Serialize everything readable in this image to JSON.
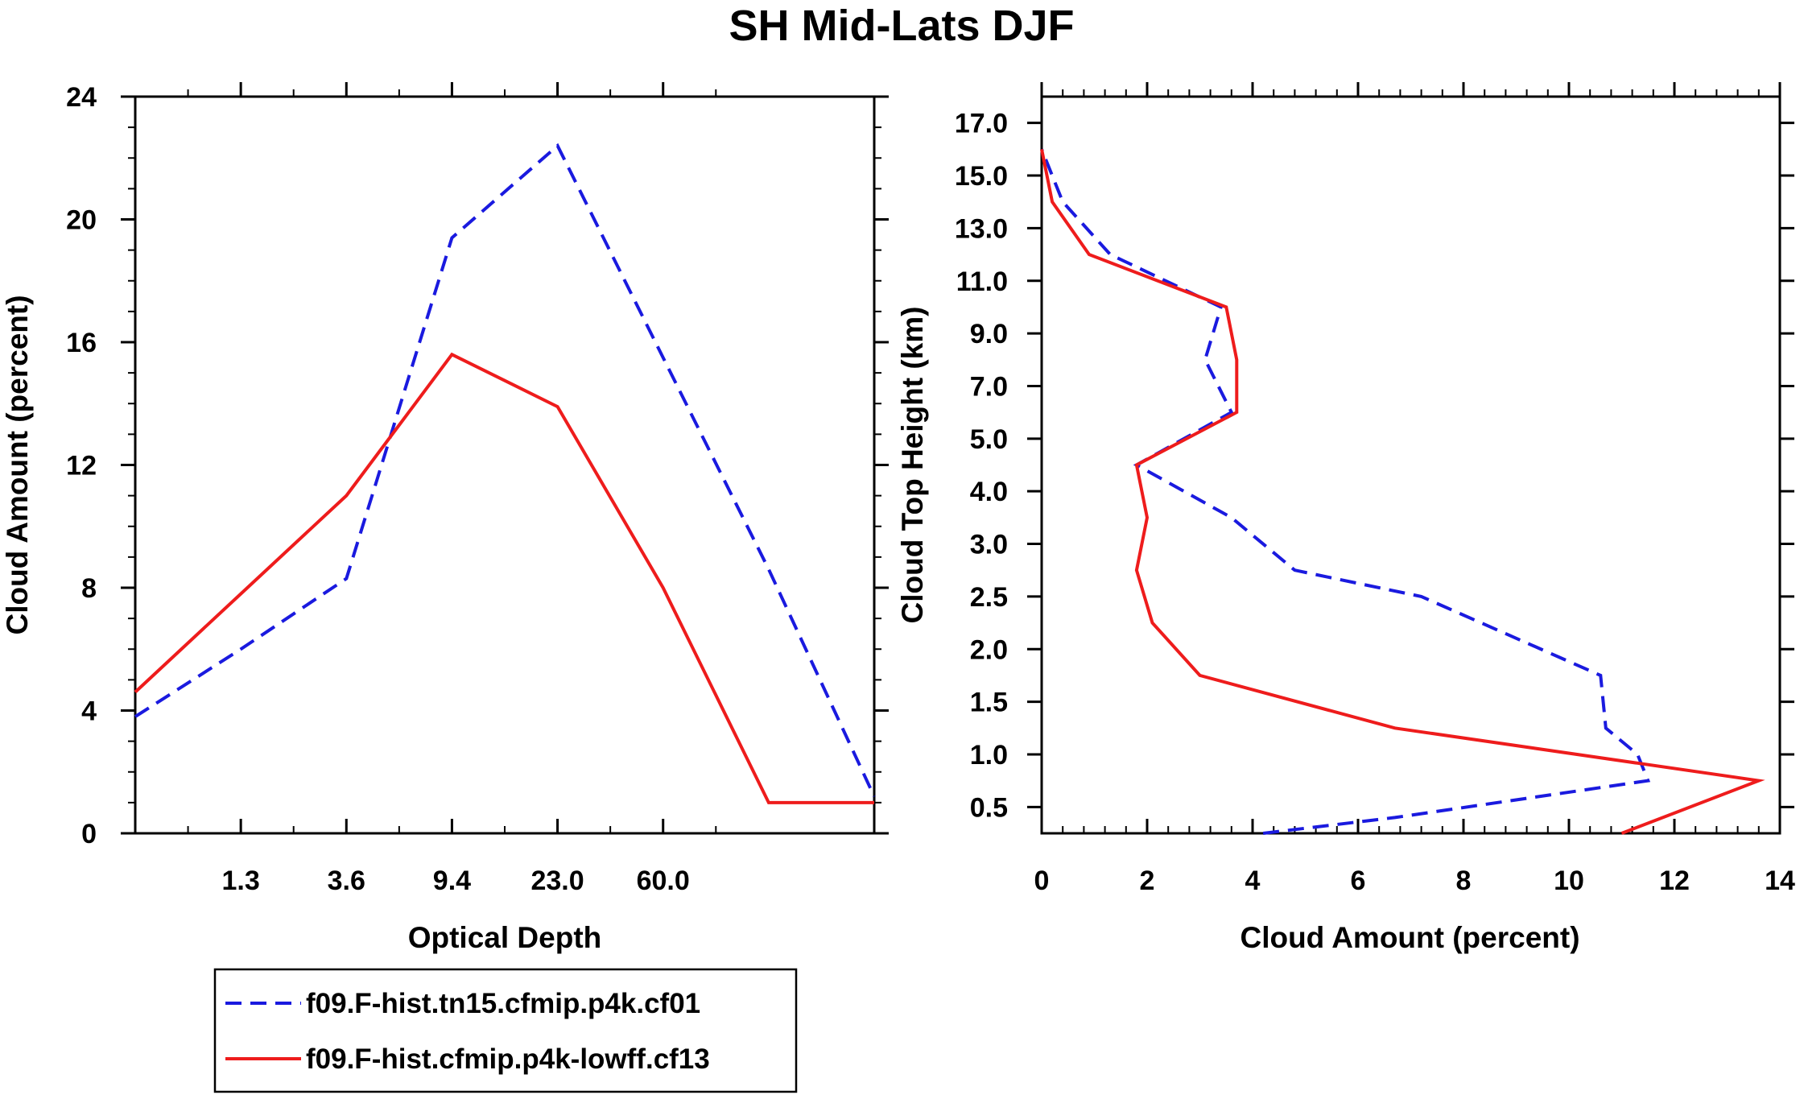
{
  "title": "SH Mid-Lats DJF",
  "colors": {
    "series1": "#1a1adf",
    "series2": "#ee1c1c",
    "axis": "#000000"
  },
  "legend": {
    "placement": "below-left",
    "entries": [
      {
        "label": "f09.F-hist.tn15.cfmip.p4k.cf01",
        "style": "dashed",
        "color": "#1a1adf"
      },
      {
        "label": "f09.F-hist.cfmip.p4k-lowff.cf13",
        "style": "solid",
        "color": "#ee1c1c"
      }
    ]
  },
  "chart_data": [
    {
      "type": "line",
      "xlabel": "Optical Depth",
      "ylabel": "Cloud Amount (percent)",
      "xlim": [
        0,
        7
      ],
      "ylim": [
        0,
        24
      ],
      "x_tick_labels": [
        {
          "x": 1,
          "label": "1.3"
        },
        {
          "x": 2,
          "label": "3.6"
        },
        {
          "x": 3,
          "label": "9.4"
        },
        {
          "x": 4,
          "label": "23.0"
        },
        {
          "x": 5,
          "label": "60.0"
        }
      ],
      "x_minor_ticks": [
        0.5,
        1.5,
        2.5,
        3.5,
        4.5,
        5.5
      ],
      "y_ticks": [
        0,
        4,
        8,
        12,
        16,
        20,
        24
      ],
      "y_minor_step": 1,
      "series": [
        {
          "name": "f09.F-hist.tn15.cfmip.p4k.cf01",
          "style": "dashed",
          "x": [
            0,
            1,
            2,
            3,
            4,
            5,
            6,
            7
          ],
          "y": [
            3.8,
            6.0,
            8.3,
            19.4,
            22.4,
            15.5,
            8.6,
            1.2
          ]
        },
        {
          "name": "f09.F-hist.cfmip.p4k-lowff.cf13",
          "style": "solid",
          "x": [
            0,
            1,
            2,
            3,
            4,
            5,
            6,
            7
          ],
          "y": [
            4.6,
            7.8,
            11.0,
            15.6,
            13.9,
            8.0,
            1.0,
            1.0
          ]
        }
      ]
    },
    {
      "type": "line",
      "xlabel": "Cloud Amount (percent)",
      "ylabel": "Cloud Top Height (km)",
      "xlim": [
        0,
        14
      ],
      "ylim": [
        0,
        14
      ],
      "x_ticks": [
        0,
        2,
        4,
        6,
        8,
        10,
        12,
        14
      ],
      "x_minor_step": 0.4,
      "y_tick_labels": [
        {
          "y": 0.5,
          "label": "0.5"
        },
        {
          "y": 1.5,
          "label": "1.0"
        },
        {
          "y": 2.5,
          "label": "1.5"
        },
        {
          "y": 3.5,
          "label": "2.0"
        },
        {
          "y": 4.5,
          "label": "2.5"
        },
        {
          "y": 5.5,
          "label": "3.0"
        },
        {
          "y": 6.5,
          "label": "4.0"
        },
        {
          "y": 7.5,
          "label": "5.0"
        },
        {
          "y": 8.5,
          "label": "7.0"
        },
        {
          "y": 9.5,
          "label": "9.0"
        },
        {
          "y": 10.5,
          "label": "11.0"
        },
        {
          "y": 11.5,
          "label": "13.0"
        },
        {
          "y": 12.5,
          "label": "15.0"
        },
        {
          "y": 13.5,
          "label": "17.0"
        }
      ],
      "series": [
        {
          "name": "f09.F-hist.tn15.cfmip.p4k.cf01",
          "style": "dashed",
          "x": [
            4.2,
            6.7,
            11.5,
            11.3,
            10.7,
            10.6,
            7.2,
            4.8,
            3.6,
            1.8,
            3.6,
            3.1,
            3.4,
            1.3,
            0.4,
            0.0
          ],
          "y": [
            0.0,
            0.3,
            1.0,
            1.5,
            2.0,
            3.0,
            4.5,
            5.0,
            6.0,
            7.0,
            8.0,
            9.0,
            10.0,
            11.0,
            12.0,
            13.0
          ]
        },
        {
          "name": "f09.F-hist.cfmip.p4k-lowff.cf13",
          "style": "solid",
          "x": [
            11.0,
            13.6,
            6.7,
            3.0,
            2.1,
            1.8,
            2.0,
            1.8,
            3.7,
            3.7,
            3.5,
            0.9,
            0.2,
            0.0
          ],
          "y": [
            0.0,
            1.0,
            2.0,
            3.0,
            4.0,
            5.0,
            6.0,
            7.0,
            8.0,
            9.0,
            10.0,
            11.0,
            12.0,
            13.0
          ]
        }
      ]
    }
  ]
}
